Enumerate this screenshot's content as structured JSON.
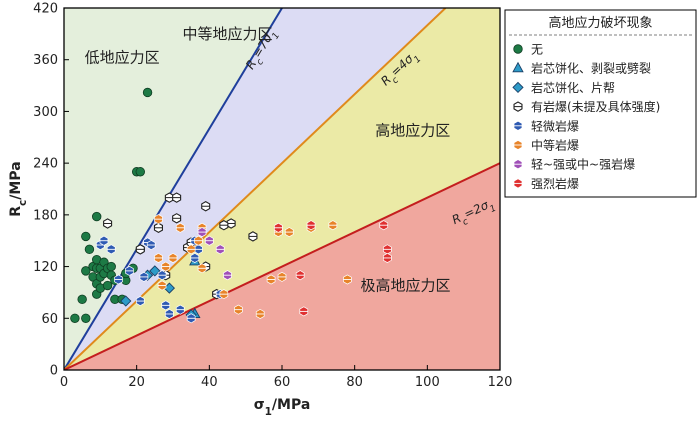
{
  "chart_data": {
    "type": "scatter",
    "xlabel": "σ1/MPa",
    "ylabel": "Rc/MPa",
    "xlim": [
      0,
      120
    ],
    "ylim": [
      0,
      420
    ],
    "xticks": [
      0,
      20,
      40,
      60,
      80,
      100,
      120
    ],
    "yticks": [
      0,
      60,
      120,
      180,
      240,
      300,
      360,
      420
    ],
    "grid": false,
    "legend_position": "right",
    "legend_title": "高地应力破坏现象",
    "regions": [
      {
        "name": "低地应力区",
        "label_x": 16,
        "label_y": 357,
        "color": "#e4efdc"
      },
      {
        "name": "中等地应力区",
        "label_x": 45,
        "label_y": 384,
        "color": "#dcdcf4"
      },
      {
        "name": "高地应力区",
        "label_x": 96,
        "label_y": 272,
        "color": "#ebeaa6"
      },
      {
        "name": "极高地应力区",
        "label_x": 94,
        "label_y": 92,
        "color": "#f0a79e"
      }
    ],
    "boundary_lines": [
      {
        "name": "Rc=7σ1",
        "slope": 7,
        "color": "#1f3f9c",
        "label_x": 55,
        "label_y": 370
      },
      {
        "name": "Rc=4σ1",
        "slope": 4,
        "color": "#e08a1c",
        "label_x": 93,
        "label_y": 347
      },
      {
        "name": "Rc=2σ1",
        "slope": 2,
        "color": "#c41e1e",
        "label_x": 113,
        "label_y": 180
      }
    ],
    "series": [
      {
        "name": "无",
        "marker": "circle",
        "color": "#1d7a45",
        "points": [
          [
            3,
            60
          ],
          [
            6,
            60
          ],
          [
            5,
            82
          ],
          [
            6,
            115
          ],
          [
            6,
            155
          ],
          [
            7,
            140
          ],
          [
            8,
            120
          ],
          [
            8,
            108
          ],
          [
            9,
            128
          ],
          [
            9,
            118
          ],
          [
            9,
            100
          ],
          [
            9,
            88
          ],
          [
            9,
            178
          ],
          [
            10,
            118
          ],
          [
            10,
            108
          ],
          [
            10,
            95
          ],
          [
            11,
            112
          ],
          [
            11,
            125
          ],
          [
            12,
            118
          ],
          [
            12,
            98
          ],
          [
            13,
            120
          ],
          [
            13,
            110
          ],
          [
            14,
            82
          ],
          [
            14,
            104
          ],
          [
            16,
            82
          ],
          [
            17,
            104
          ],
          [
            17,
            112
          ],
          [
            19,
            118
          ],
          [
            20,
            230
          ],
          [
            21,
            230
          ],
          [
            23,
            322
          ],
          [
            21,
            140
          ]
        ]
      },
      {
        "name": "岩芯饼化、剥裂或劈裂",
        "marker": "triangle",
        "color": "#2e9bc8",
        "points": [
          [
            36,
            126
          ],
          [
            36,
            65
          ]
        ]
      },
      {
        "name": "岩芯饼化、片帮",
        "marker": "diamond",
        "color": "#2e9bc8",
        "points": [
          [
            17,
            80
          ],
          [
            23,
            110
          ],
          [
            25,
            115
          ],
          [
            29,
            95
          ],
          [
            35,
            64
          ]
        ]
      },
      {
        "name": "有岩爆(未提及具体强度)",
        "marker": "hexagon-open",
        "color": "#222222",
        "points": [
          [
            12,
            170
          ],
          [
            21,
            140
          ],
          [
            26,
            165
          ],
          [
            28,
            110
          ],
          [
            29,
            200
          ],
          [
            31,
            200
          ],
          [
            31,
            176
          ],
          [
            34,
            142
          ],
          [
            35,
            148
          ],
          [
            39,
            120
          ],
          [
            39,
            190
          ],
          [
            42,
            88
          ],
          [
            46,
            170
          ],
          [
            52,
            155
          ],
          [
            44,
            168
          ]
        ]
      },
      {
        "name": "轻微岩爆",
        "marker": "hexagon",
        "color": "#2f5bb3",
        "points": [
          [
            10,
            145
          ],
          [
            11,
            150
          ],
          [
            13,
            140
          ],
          [
            15,
            105
          ],
          [
            18,
            115
          ],
          [
            21,
            80
          ],
          [
            22,
            108
          ],
          [
            23,
            148
          ],
          [
            24,
            145
          ],
          [
            27,
            110
          ],
          [
            28,
            75
          ],
          [
            29,
            65
          ],
          [
            32,
            70
          ],
          [
            35,
            60
          ],
          [
            36,
            130
          ],
          [
            36,
            150
          ],
          [
            37,
            140
          ],
          [
            43,
            88
          ]
        ]
      },
      {
        "name": "中等岩爆",
        "marker": "hexagon",
        "color": "#e8842a",
        "points": [
          [
            26,
            175
          ],
          [
            26,
            130
          ],
          [
            27,
            98
          ],
          [
            28,
            120
          ],
          [
            30,
            130
          ],
          [
            32,
            165
          ],
          [
            35,
            140
          ],
          [
            37,
            150
          ],
          [
            38,
            118
          ],
          [
            38,
            165
          ],
          [
            44,
            88
          ],
          [
            48,
            70
          ],
          [
            54,
            65
          ],
          [
            57,
            105
          ],
          [
            59,
            160
          ],
          [
            60,
            108
          ],
          [
            62,
            160
          ],
          [
            68,
            165
          ],
          [
            74,
            168
          ],
          [
            78,
            105
          ]
        ]
      },
      {
        "name": "轻~强或中~强岩爆",
        "marker": "hexagon",
        "color": "#a050b8",
        "points": [
          [
            38,
            160
          ],
          [
            40,
            150
          ],
          [
            43,
            140
          ],
          [
            45,
            110
          ]
        ]
      },
      {
        "name": "强烈岩爆",
        "marker": "hexagon",
        "color": "#e03131",
        "points": [
          [
            59,
            165
          ],
          [
            65,
            110
          ],
          [
            66,
            68
          ],
          [
            68,
            168
          ],
          [
            88,
            168
          ],
          [
            89,
            140
          ],
          [
            89,
            130
          ]
        ]
      }
    ]
  }
}
